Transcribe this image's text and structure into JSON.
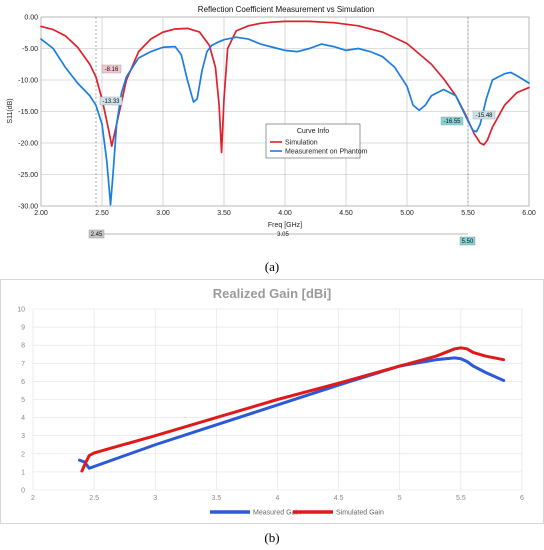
{
  "chart_data": [
    {
      "type": "line",
      "title": "Reflection Coefficient Measurement vs Simulation",
      "xlabel": "Freq [GHz]",
      "ylabel": "S11(dB)",
      "xlim": [
        2.0,
        6.0
      ],
      "ylim": [
        -30.0,
        0.0
      ],
      "xticks": [
        "2.00",
        "2.50",
        "3.00",
        "3.50",
        "4.00",
        "4.50",
        "5.00",
        "5.50",
        "6.00"
      ],
      "yticks": [
        "0.00",
        "-5.00",
        "-10.00",
        "-15.00",
        "-20.00",
        "-25.00",
        "-30.00"
      ],
      "grid": true,
      "legend": {
        "title": "Curve Info",
        "placement": "center-right",
        "entries": [
          "Simulation",
          "Measurement on Phantom"
        ]
      },
      "series": [
        {
          "name": "Simulation",
          "color": "#e0202a",
          "x": [
            2.0,
            2.1,
            2.2,
            2.3,
            2.4,
            2.45,
            2.5,
            2.55,
            2.58,
            2.62,
            2.7,
            2.8,
            2.9,
            3.0,
            3.1,
            3.2,
            3.3,
            3.38,
            3.43,
            3.46,
            3.48,
            3.5,
            3.53,
            3.6,
            3.7,
            3.8,
            3.9,
            4.0,
            4.2,
            4.4,
            4.6,
            4.8,
            5.0,
            5.2,
            5.3,
            5.4,
            5.48,
            5.55,
            5.6,
            5.63,
            5.66,
            5.7,
            5.8,
            5.9,
            6.0
          ],
          "y": [
            -1.5,
            -2.0,
            -3.0,
            -4.8,
            -7.5,
            -9.5,
            -13.0,
            -17.5,
            -20.5,
            -17.0,
            -10.0,
            -5.5,
            -3.5,
            -2.4,
            -1.9,
            -1.8,
            -2.4,
            -4.5,
            -8.0,
            -14.0,
            -21.5,
            -13.0,
            -5.0,
            -2.2,
            -1.4,
            -1.0,
            -0.8,
            -0.7,
            -0.7,
            -0.9,
            -1.4,
            -2.4,
            -4.2,
            -7.5,
            -9.8,
            -12.5,
            -15.5,
            -18.5,
            -20.0,
            -20.3,
            -19.5,
            -17.5,
            -14.0,
            -12.0,
            -11.2
          ]
        },
        {
          "name": "Measurement on Phantom",
          "color": "#1a7ee0",
          "x": [
            2.0,
            2.1,
            2.2,
            2.3,
            2.4,
            2.45,
            2.5,
            2.54,
            2.57,
            2.59,
            2.62,
            2.66,
            2.7,
            2.8,
            2.9,
            3.0,
            3.1,
            3.15,
            3.2,
            3.25,
            3.28,
            3.32,
            3.36,
            3.4,
            3.45,
            3.5,
            3.6,
            3.7,
            3.8,
            3.9,
            4.0,
            4.1,
            4.2,
            4.3,
            4.4,
            4.5,
            4.6,
            4.7,
            4.8,
            4.9,
            5.0,
            5.05,
            5.1,
            5.15,
            5.2,
            5.3,
            5.4,
            5.45,
            5.5,
            5.54,
            5.57,
            5.6,
            5.65,
            5.7,
            5.75,
            5.8,
            5.85,
            5.9,
            6.0
          ],
          "y": [
            -3.5,
            -5.0,
            -8.0,
            -10.5,
            -12.5,
            -14.0,
            -17.0,
            -23.0,
            -29.8,
            -25.0,
            -17.0,
            -12.0,
            -9.5,
            -6.5,
            -5.5,
            -4.8,
            -4.7,
            -6.0,
            -10.0,
            -13.5,
            -13.0,
            -8.5,
            -5.5,
            -4.5,
            -4.0,
            -3.6,
            -3.2,
            -3.5,
            -4.3,
            -4.8,
            -5.3,
            -5.5,
            -5.0,
            -4.3,
            -4.7,
            -5.3,
            -5.0,
            -5.5,
            -6.3,
            -8.0,
            -11.0,
            -14.0,
            -14.8,
            -14.0,
            -12.5,
            -11.5,
            -12.5,
            -14.5,
            -16.5,
            -18.0,
            -18.2,
            -17.0,
            -13.0,
            -10.0,
            -9.5,
            -9.0,
            -8.8,
            -9.3,
            -10.5
          ]
        }
      ],
      "markers": [
        {
          "label": "-8.16",
          "color": "#e0202a"
        },
        {
          "label": "-13.33",
          "color": "#1a7ee0"
        },
        {
          "label": "-16.55",
          "color": "#1a7ee0"
        },
        {
          "label": "-15.48",
          "color": "#e0202a"
        }
      ],
      "cursor_labels": [
        "2.45",
        "3.05",
        "5.50"
      ]
    },
    {
      "type": "line",
      "title": "Realized Gain [dBi]",
      "xlabel": "",
      "ylabel": "",
      "xlim": [
        2.0,
        6.0
      ],
      "ylim": [
        0,
        10
      ],
      "xticks": [
        "2",
        "2.5",
        "3",
        "3.5",
        "4",
        "4.5",
        "5",
        "5.5",
        "6"
      ],
      "yticks": [
        "0",
        "1",
        "2",
        "3",
        "4",
        "5",
        "6",
        "7",
        "8",
        "9",
        "10"
      ],
      "grid": true,
      "legend": {
        "placement": "bottom"
      },
      "series": [
        {
          "name": "Measured Gain",
          "color": "#2b59d8",
          "x": [
            2.38,
            2.42,
            2.46,
            2.5,
            3.0,
            3.5,
            4.0,
            4.5,
            5.0,
            5.3,
            5.45,
            5.5,
            5.55,
            5.6,
            5.7,
            5.85
          ],
          "y": [
            1.65,
            1.55,
            1.2,
            1.3,
            2.5,
            3.6,
            4.7,
            5.8,
            6.85,
            7.2,
            7.3,
            7.25,
            7.1,
            6.85,
            6.5,
            6.05
          ]
        },
        {
          "name": "Simulated Gain",
          "color": "#e01a1a",
          "x": [
            2.4,
            2.43,
            2.46,
            2.5,
            3.0,
            3.5,
            4.0,
            4.5,
            5.0,
            5.3,
            5.45,
            5.5,
            5.55,
            5.6,
            5.7,
            5.85
          ],
          "y": [
            1.05,
            1.5,
            1.9,
            2.05,
            3.0,
            4.0,
            5.0,
            5.9,
            6.85,
            7.4,
            7.8,
            7.85,
            7.8,
            7.6,
            7.4,
            7.2
          ]
        }
      ]
    }
  ],
  "labels": {
    "a": "(a)",
    "b": "(b)"
  }
}
